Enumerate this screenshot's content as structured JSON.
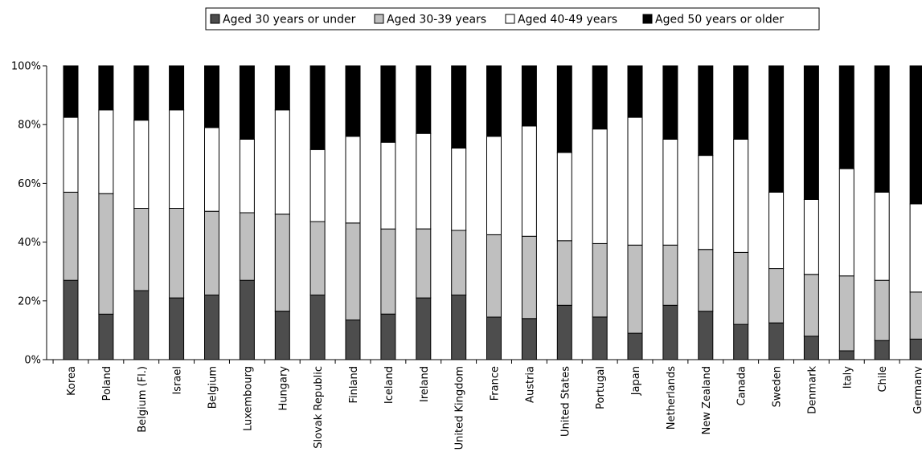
{
  "chart_data": {
    "type": "bar",
    "stacked": true,
    "percent_stacked": true,
    "legend": {
      "placement": "top"
    },
    "series": [
      {
        "name": "Aged 30 years or under",
        "color": "#4d4d4d",
        "values": [
          27,
          15.5,
          23.5,
          21,
          22,
          27,
          16.5,
          22,
          13.5,
          15.5,
          21,
          22,
          14.5,
          14,
          18.5,
          14.5,
          9,
          18.5,
          16.5,
          12,
          12.5,
          8,
          3,
          6.5,
          7
        ]
      },
      {
        "name": "Aged 30-39 years",
        "color": "#bfbfbf",
        "values": [
          30,
          41,
          28,
          30.5,
          28.5,
          23,
          33,
          25,
          33,
          29,
          23.5,
          22,
          28,
          28,
          22,
          25,
          30,
          20.5,
          21,
          24.5,
          18.5,
          21,
          25.5,
          20.5,
          16
        ]
      },
      {
        "name": "Aged 40-49 years",
        "color": "#ffffff",
        "values": [
          25.5,
          28.5,
          30,
          33.5,
          28.5,
          25,
          35.5,
          24.5,
          29.5,
          29.5,
          32.5,
          28,
          33.5,
          37.5,
          30,
          39,
          43.5,
          36,
          32,
          38.5,
          26,
          25.5,
          36.5,
          30,
          30
        ]
      },
      {
        "name": "Aged 50 years or older",
        "color": "#000000",
        "values": [
          17.5,
          15,
          18.5,
          15,
          21,
          25,
          15,
          28.5,
          24,
          26,
          23,
          28,
          24,
          20.5,
          29.5,
          21.5,
          17.5,
          25,
          30.5,
          25,
          43,
          45.5,
          35,
          43,
          47
        ]
      }
    ],
    "categories": [
      "Korea",
      "Poland",
      "Belgium (Fl.)",
      "Israel",
      "Belgium",
      "Luxembourg",
      "Hungary",
      "Slovak Republic",
      "Finland",
      "Iceland",
      "Ireland",
      "United Kingdom",
      "France",
      "Austria",
      "United States",
      "Portugal",
      "Japan",
      "Netherlands",
      "New Zealand",
      "Canada",
      "Sweden",
      "Denmark",
      "Italy",
      "Chile",
      "Germany"
    ],
    "y_ticks": [
      "0%",
      "20%",
      "40%",
      "60%",
      "80%",
      "100%"
    ],
    "ylim": [
      0,
      100
    ],
    "grid": false
  }
}
